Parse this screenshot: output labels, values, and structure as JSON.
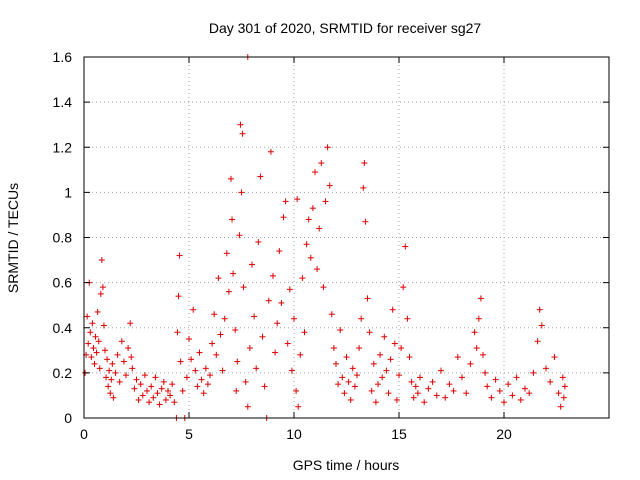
{
  "chart_data": {
    "type": "scatter",
    "title": "Day 301 of 2020, SRMTID for receiver sg27",
    "xlabel": "GPS time / hours",
    "ylabel": "SRMTID / TECUs",
    "xlim": [
      0,
      25
    ],
    "ylim": [
      0,
      1.6
    ],
    "grid": true,
    "x_ticks": [
      0,
      5,
      10,
      15,
      20
    ],
    "x_tick_labels": [
      "0",
      "5",
      "10",
      "15",
      "20"
    ],
    "y_ticks": [
      0,
      0.2,
      0.4,
      0.6,
      0.8,
      1.0,
      1.2,
      1.4,
      1.6
    ],
    "y_tick_labels": [
      "0",
      "0.2",
      "0.4",
      "0.6",
      "0.8",
      "1",
      "1.2",
      "1.4",
      "1.6"
    ],
    "series": [
      {
        "name": "SRMTID",
        "marker": "plus",
        "color": "#dd0000",
        "points": [
          [
            0.05,
            0.2
          ],
          [
            0.1,
            0.28
          ],
          [
            0.15,
            0.45
          ],
          [
            0.2,
            0.33
          ],
          [
            0.25,
            0.6
          ],
          [
            0.3,
            0.38
          ],
          [
            0.35,
            0.27
          ],
          [
            0.4,
            0.42
          ],
          [
            0.45,
            0.31
          ],
          [
            0.5,
            0.24
          ],
          [
            0.55,
            0.36
          ],
          [
            0.6,
            0.29
          ],
          [
            0.65,
            0.47
          ],
          [
            0.7,
            0.34
          ],
          [
            0.75,
            0.22
          ],
          [
            0.8,
            0.55
          ],
          [
            0.85,
            0.7
          ],
          [
            0.9,
            0.58
          ],
          [
            0.95,
            0.41
          ],
          [
            1.0,
            0.3
          ],
          [
            1.05,
            0.18
          ],
          [
            1.1,
            0.26
          ],
          [
            1.15,
            0.14
          ],
          [
            1.2,
            0.21
          ],
          [
            1.25,
            0.11
          ],
          [
            1.3,
            0.17
          ],
          [
            1.35,
            0.24
          ],
          [
            1.4,
            0.09
          ],
          [
            1.5,
            0.2
          ],
          [
            1.6,
            0.28
          ],
          [
            1.7,
            0.16
          ],
          [
            1.8,
            0.34
          ],
          [
            1.9,
            0.25
          ],
          [
            2.0,
            0.19
          ],
          [
            2.1,
            0.31
          ],
          [
            2.2,
            0.42
          ],
          [
            2.25,
            0.27
          ],
          [
            2.3,
            0.22
          ],
          [
            2.4,
            0.13
          ],
          [
            2.5,
            0.17
          ],
          [
            2.6,
            0.08
          ],
          [
            2.7,
            0.15
          ],
          [
            2.8,
            0.1
          ],
          [
            2.9,
            0.19
          ],
          [
            3.0,
            0.12
          ],
          [
            3.1,
            0.07
          ],
          [
            3.2,
            0.14
          ],
          [
            3.3,
            0.09
          ],
          [
            3.4,
            0.18
          ],
          [
            3.5,
            0.11
          ],
          [
            3.6,
            0.06
          ],
          [
            3.7,
            0.13
          ],
          [
            3.8,
            0.16
          ],
          [
            3.9,
            0.08
          ],
          [
            4.0,
            0.12
          ],
          [
            4.1,
            0.1
          ],
          [
            4.2,
            0.15
          ],
          [
            4.3,
            0.07
          ],
          [
            4.4,
            0.0
          ],
          [
            4.45,
            0.38
          ],
          [
            4.5,
            0.54
          ],
          [
            4.55,
            0.72
          ],
          [
            4.6,
            0.25
          ],
          [
            4.7,
            0.12
          ],
          [
            4.8,
            0.0
          ],
          [
            4.9,
            0.18
          ],
          [
            5.0,
            0.35
          ],
          [
            5.1,
            0.26
          ],
          [
            5.2,
            0.48
          ],
          [
            5.3,
            0.21
          ],
          [
            5.4,
            0.14
          ],
          [
            5.5,
            0.29
          ],
          [
            5.6,
            0.17
          ],
          [
            5.7,
            0.11
          ],
          [
            5.8,
            0.22
          ],
          [
            5.9,
            0.15
          ],
          [
            6.0,
            0.19
          ],
          [
            6.1,
            0.33
          ],
          [
            6.2,
            0.46
          ],
          [
            6.3,
            0.28
          ],
          [
            6.4,
            0.62
          ],
          [
            6.5,
            0.37
          ],
          [
            6.6,
            0.21
          ],
          [
            6.7,
            0.44
          ],
          [
            6.8,
            0.73
          ],
          [
            6.9,
            0.56
          ],
          [
            7.0,
            1.06
          ],
          [
            7.05,
            0.88
          ],
          [
            7.1,
            0.64
          ],
          [
            7.2,
            0.39
          ],
          [
            7.25,
            0.12
          ],
          [
            7.3,
            0.25
          ],
          [
            7.4,
            0.81
          ],
          [
            7.45,
            1.3
          ],
          [
            7.5,
            1.0
          ],
          [
            7.55,
            1.26
          ],
          [
            7.6,
            0.58
          ],
          [
            7.7,
            0.16
          ],
          [
            7.8,
            0.05
          ],
          [
            7.9,
            0.31
          ],
          [
            7.8,
            1.6
          ],
          [
            8.0,
            0.68
          ],
          [
            8.1,
            0.45
          ],
          [
            8.2,
            0.22
          ],
          [
            8.3,
            0.78
          ],
          [
            8.4,
            1.07
          ],
          [
            8.5,
            0.36
          ],
          [
            8.6,
            0.14
          ],
          [
            8.7,
            0.0
          ],
          [
            8.8,
            0.52
          ],
          [
            8.9,
            1.18
          ],
          [
            9.0,
            0.63
          ],
          [
            9.1,
            0.29
          ],
          [
            9.2,
            0.42
          ],
          [
            9.3,
            0.74
          ],
          [
            9.4,
            0.51
          ],
          [
            9.5,
            0.89
          ],
          [
            9.6,
            0.96
          ],
          [
            9.7,
            0.33
          ],
          [
            9.8,
            0.57
          ],
          [
            9.9,
            0.21
          ],
          [
            10.0,
            0.44
          ],
          [
            10.1,
            0.12
          ],
          [
            10.15,
            0.97
          ],
          [
            10.2,
            0.05
          ],
          [
            10.3,
            0.28
          ],
          [
            10.4,
            0.62
          ],
          [
            10.5,
            0.38
          ],
          [
            10.6,
            0.77
          ],
          [
            10.7,
            0.88
          ],
          [
            10.8,
            0.71
          ],
          [
            10.9,
            0.93
          ],
          [
            11.0,
            1.09
          ],
          [
            11.1,
            0.66
          ],
          [
            11.2,
            0.84
          ],
          [
            11.3,
            1.13
          ],
          [
            11.4,
            0.58
          ],
          [
            11.5,
            0.96
          ],
          [
            11.6,
            1.2
          ],
          [
            11.7,
            1.03
          ],
          [
            11.8,
            0.46
          ],
          [
            11.9,
            0.31
          ],
          [
            12.0,
            0.24
          ],
          [
            12.1,
            0.15
          ],
          [
            12.2,
            0.39
          ],
          [
            12.3,
            0.18
          ],
          [
            12.4,
            0.11
          ],
          [
            12.5,
            0.27
          ],
          [
            12.6,
            0.16
          ],
          [
            12.7,
            0.08
          ],
          [
            12.8,
            0.22
          ],
          [
            12.9,
            0.14
          ],
          [
            13.0,
            0.19
          ],
          [
            13.1,
            0.31
          ],
          [
            13.2,
            0.44
          ],
          [
            13.3,
            1.02
          ],
          [
            13.35,
            1.13
          ],
          [
            13.4,
            0.87
          ],
          [
            13.5,
            0.53
          ],
          [
            13.6,
            0.38
          ],
          [
            13.7,
            0.12
          ],
          [
            13.8,
            0.24
          ],
          [
            13.9,
            0.07
          ],
          [
            14.0,
            0.15
          ],
          [
            14.1,
            0.28
          ],
          [
            14.2,
            0.18
          ],
          [
            14.3,
            0.36
          ],
          [
            14.4,
            0.21
          ],
          [
            14.5,
            0.11
          ],
          [
            14.6,
            0.26
          ],
          [
            14.7,
            0.48
          ],
          [
            14.8,
            0.33
          ],
          [
            14.9,
            0.08
          ],
          [
            15.0,
            0.19
          ],
          [
            15.1,
            0.31
          ],
          [
            15.2,
            0.58
          ],
          [
            15.3,
            0.76
          ],
          [
            15.4,
            0.44
          ],
          [
            15.5,
            0.27
          ],
          [
            15.6,
            0.16
          ],
          [
            15.7,
            0.09
          ],
          [
            15.8,
            0.14
          ],
          [
            15.9,
            0.11
          ],
          [
            16.0,
            0.18
          ],
          [
            16.2,
            0.07
          ],
          [
            16.4,
            0.13
          ],
          [
            16.6,
            0.16
          ],
          [
            16.8,
            0.1
          ],
          [
            17.0,
            0.21
          ],
          [
            17.2,
            0.09
          ],
          [
            17.4,
            0.15
          ],
          [
            17.6,
            0.12
          ],
          [
            17.8,
            0.27
          ],
          [
            18.0,
            0.18
          ],
          [
            18.2,
            0.11
          ],
          [
            18.4,
            0.24
          ],
          [
            18.6,
            0.38
          ],
          [
            18.7,
            0.31
          ],
          [
            18.8,
            0.44
          ],
          [
            18.9,
            0.53
          ],
          [
            19.0,
            0.28
          ],
          [
            19.1,
            0.2
          ],
          [
            19.2,
            0.14
          ],
          [
            19.4,
            0.09
          ],
          [
            19.6,
            0.17
          ],
          [
            19.8,
            0.12
          ],
          [
            20.0,
            0.07
          ],
          [
            20.2,
            0.15
          ],
          [
            20.4,
            0.1
          ],
          [
            20.6,
            0.18
          ],
          [
            20.8,
            0.08
          ],
          [
            21.0,
            0.13
          ],
          [
            21.2,
            0.11
          ],
          [
            21.4,
            0.2
          ],
          [
            21.6,
            0.34
          ],
          [
            21.7,
            0.48
          ],
          [
            21.8,
            0.41
          ],
          [
            22.0,
            0.22
          ],
          [
            22.2,
            0.16
          ],
          [
            22.4,
            0.27
          ],
          [
            22.6,
            0.11
          ],
          [
            22.7,
            0.05
          ],
          [
            22.8,
            0.18
          ],
          [
            22.85,
            0.09
          ],
          [
            22.9,
            0.14
          ]
        ]
      }
    ]
  }
}
